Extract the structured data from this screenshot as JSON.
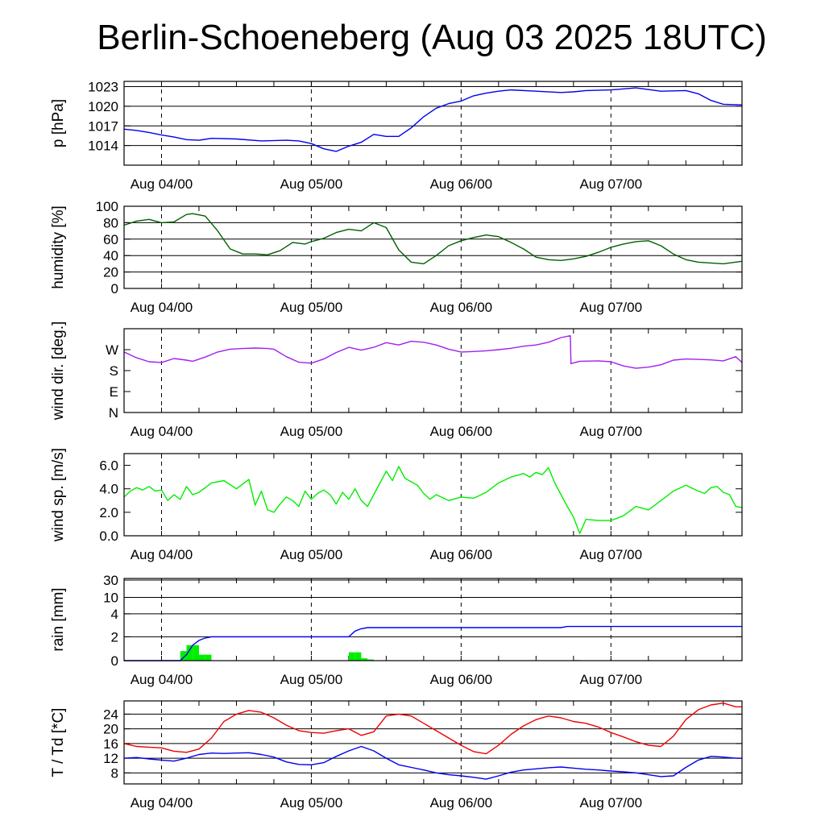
{
  "title": "Berlin-Schoeneberg (Aug 03 2025 18UTC)",
  "x_ticks": [
    "Aug 04/00",
    "Aug 05/00",
    "Aug 06/00",
    "Aug 07/00"
  ],
  "chart_data": [
    {
      "type": "line",
      "ylabel": "p [hPa]",
      "ylim": [
        1011,
        1023.8
      ],
      "yticks": [
        "1014",
        "1017",
        "1020",
        "1023"
      ],
      "grid": true,
      "series": [
        {
          "color": "#0000ee",
          "x": [
            -6,
            -4,
            -2,
            0,
            2,
            4,
            6,
            8,
            12,
            16,
            20,
            22,
            24,
            26,
            28,
            30,
            32,
            34,
            36,
            38,
            40,
            42,
            44,
            46,
            48,
            50,
            52,
            54,
            56,
            60,
            64,
            66,
            68,
            72,
            76,
            80,
            84,
            86,
            88,
            90,
            93
          ],
          "y": [
            1016.5,
            1016.3,
            1016.0,
            1015.6,
            1015.3,
            1014.9,
            1014.8,
            1015.1,
            1015.0,
            1014.7,
            1014.8,
            1014.7,
            1014.3,
            1013.5,
            1013.1,
            1013.9,
            1014.5,
            1015.7,
            1015.4,
            1015.4,
            1016.7,
            1018.4,
            1019.7,
            1020.4,
            1020.8,
            1021.6,
            1022.0,
            1022.3,
            1022.5,
            1022.3,
            1022.1,
            1022.2,
            1022.4,
            1022.5,
            1022.8,
            1022.3,
            1022.4,
            1021.9,
            1020.9,
            1020.3,
            1020.2
          ]
        }
      ]
    },
    {
      "type": "line",
      "ylabel": "humidity [%]",
      "ylim": [
        0,
        100
      ],
      "yticks": [
        "0",
        "20",
        "40",
        "60",
        "80",
        "100"
      ],
      "grid": true,
      "series": [
        {
          "color": "#006000",
          "x": [
            -6,
            -4,
            -2,
            0,
            2,
            4,
            5,
            7,
            9,
            11,
            13,
            15,
            17,
            19,
            21,
            23,
            24,
            26,
            28,
            30,
            32,
            34,
            36,
            38,
            40,
            42,
            44,
            46,
            48,
            50,
            52,
            54,
            56,
            58,
            60,
            62,
            64,
            66,
            68,
            70,
            72,
            74,
            76,
            78,
            80,
            82,
            84,
            86,
            88,
            90,
            93
          ],
          "y": [
            77,
            82,
            84,
            80,
            81,
            90,
            91,
            88,
            70,
            48,
            42,
            42,
            41,
            46,
            56,
            54,
            57,
            61,
            68,
            72,
            70,
            80,
            74,
            47,
            32,
            30,
            40,
            52,
            58,
            62,
            65,
            63,
            56,
            48,
            38,
            35,
            34,
            36,
            39,
            44,
            50,
            54,
            57,
            58,
            52,
            42,
            35,
            32,
            31,
            30,
            33
          ]
        }
      ]
    },
    {
      "type": "line",
      "ylabel": "wind dir. [deg.]",
      "ylim": [
        0,
        360
      ],
      "yticks": [
        "N",
        "E",
        "S",
        "W"
      ],
      "grid": false,
      "series": [
        {
          "color": "#a020f0",
          "x": [
            -6,
            -4,
            -2,
            0,
            2,
            4,
            5,
            7,
            9,
            11,
            13,
            15,
            17,
            18,
            20,
            22,
            24,
            26,
            28,
            30,
            32,
            34,
            36,
            38,
            40,
            42,
            44,
            46,
            48,
            50,
            52,
            54,
            56,
            58,
            60,
            62,
            64,
            65.5,
            65.6,
            67,
            70,
            72,
            74,
            76,
            78,
            80,
            82,
            84,
            86,
            88,
            90,
            92,
            93
          ],
          "y": [
            260,
            235,
            218,
            215,
            232,
            225,
            220,
            238,
            260,
            272,
            275,
            277,
            275,
            272,
            240,
            216,
            212,
            230,
            258,
            280,
            268,
            280,
            300,
            290,
            306,
            302,
            290,
            272,
            260,
            262,
            265,
            270,
            276,
            285,
            290,
            302,
            322,
            330,
            210,
            220,
            222,
            218,
            200,
            190,
            195,
            205,
            225,
            230,
            228,
            226,
            222,
            240,
            215
          ]
        }
      ]
    },
    {
      "type": "line",
      "ylabel": "wind sp. [m/s]",
      "ylim": [
        0,
        7
      ],
      "yticks": [
        "0.0",
        "2.0",
        "4.0",
        "6.0"
      ],
      "grid": false,
      "series": [
        {
          "color": "#00ee00",
          "x": [
            -6,
            -5,
            -4,
            -3,
            -2,
            -1,
            0,
            1,
            2,
            3,
            4,
            5,
            6,
            8,
            10,
            12,
            14,
            15,
            16,
            17,
            18,
            19,
            20,
            21,
            22,
            23,
            24,
            25,
            26,
            27,
            28,
            29,
            30,
            31,
            32,
            33,
            34,
            36,
            37,
            38,
            39,
            40,
            41,
            42,
            43,
            44,
            46,
            48,
            50,
            52,
            54,
            56,
            58,
            59,
            60,
            61,
            62,
            63,
            64,
            65,
            66,
            67,
            68,
            70,
            72,
            74,
            76,
            78,
            80,
            82,
            84,
            86,
            87,
            88,
            89,
            90,
            91,
            92,
            93
          ],
          "y": [
            3.3,
            3.8,
            4.1,
            3.9,
            4.2,
            3.8,
            3.9,
            3.0,
            3.5,
            3.1,
            4.2,
            3.5,
            3.7,
            4.5,
            4.7,
            4.0,
            4.8,
            2.6,
            3.8,
            2.2,
            2.0,
            2.7,
            3.3,
            3.0,
            2.5,
            3.8,
            3.1,
            3.6,
            3.9,
            3.5,
            2.7,
            3.7,
            3.1,
            4.0,
            3.0,
            2.5,
            3.5,
            5.5,
            4.7,
            5.9,
            4.9,
            4.6,
            4.3,
            3.6,
            3.1,
            3.5,
            3.0,
            3.3,
            3.2,
            3.7,
            4.5,
            5.0,
            5.3,
            5.0,
            5.4,
            5.2,
            5.8,
            4.5,
            3.5,
            2.5,
            1.6,
            0.2,
            1.4,
            1.3,
            1.3,
            1.7,
            2.5,
            2.2,
            3.0,
            3.8,
            4.3,
            3.8,
            3.6,
            4.1,
            4.2,
            3.7,
            3.5,
            2.5,
            2.4
          ]
        }
      ]
    },
    {
      "type": "bar",
      "ylabel": "rain [mm]",
      "scale": "custom",
      "ylim": [
        0,
        30
      ],
      "yticks": [
        "0",
        "2",
        "4",
        "10",
        "30"
      ],
      "grid": true,
      "bars": {
        "color": "#00ee00",
        "x": [
          4,
          5,
          6,
          7,
          8,
          31,
          32,
          33,
          34,
          67
        ],
        "values": [
          0.8,
          1.3,
          1.3,
          0.5,
          0.5,
          0.7,
          0.7,
          0.2,
          0.1,
          0.05
        ]
      },
      "series": [
        {
          "name": "",
          "color": "#0000ee",
          "x": [
            -6,
            3,
            4,
            5,
            6,
            7,
            8,
            12,
            20,
            24,
            30,
            31,
            32,
            33,
            35,
            40,
            48,
            60,
            64,
            65,
            72,
            80,
            93
          ],
          "y": [
            0,
            0,
            0.5,
            1.3,
            1.7,
            1.9,
            2.0,
            2.0,
            2.0,
            2.0,
            2.0,
            2.5,
            2.7,
            2.8,
            2.8,
            2.8,
            2.8,
            2.8,
            2.8,
            2.9,
            2.9,
            2.9,
            2.9
          ]
        }
      ]
    },
    {
      "type": "line",
      "ylabel": "T / Td [*C]",
      "ylim": [
        5,
        27.6
      ],
      "yticks": [
        "8",
        "12",
        "16",
        "20",
        "24"
      ],
      "grid": true,
      "series": [
        {
          "color": "#ee0000",
          "x": [
            -6,
            -4,
            -2,
            0,
            2,
            4,
            6,
            8,
            10,
            12,
            14,
            16,
            18,
            20,
            22,
            24,
            26,
            28,
            30,
            32,
            34,
            36,
            38,
            40,
            42,
            44,
            46,
            48,
            50,
            52,
            54,
            56,
            58,
            60,
            62,
            64,
            66,
            68,
            70,
            72,
            74,
            76,
            78,
            80,
            82,
            84,
            86,
            88,
            90,
            92,
            93
          ],
          "y": [
            16,
            15.2,
            15,
            14.8,
            13.9,
            13.6,
            14.5,
            17.5,
            22,
            24,
            25,
            24.5,
            23,
            21,
            19.5,
            19,
            18.8,
            19.5,
            20,
            18.2,
            19.2,
            23.5,
            24,
            23.5,
            21.5,
            19.5,
            17.5,
            15.5,
            13.8,
            13.2,
            15.5,
            18.5,
            20.8,
            22.5,
            23.5,
            23,
            22,
            21.5,
            20.5,
            19,
            17.8,
            16.5,
            15.5,
            15.2,
            18,
            22.5,
            25.2,
            26.5,
            27,
            26,
            26
          ]
        },
        {
          "color": "#0000ee",
          "x": [
            -6,
            -4,
            -2,
            0,
            2,
            4,
            6,
            8,
            10,
            12,
            14,
            16,
            18,
            20,
            22,
            24,
            26,
            28,
            30,
            32,
            34,
            36,
            38,
            40,
            42,
            44,
            46,
            48,
            50,
            52,
            54,
            56,
            58,
            60,
            62,
            64,
            66,
            68,
            70,
            72,
            74,
            76,
            78,
            80,
            82,
            84,
            86,
            88,
            90,
            92,
            93
          ],
          "y": [
            12,
            12.2,
            11.8,
            11.5,
            11.2,
            12,
            13,
            13.4,
            13.3,
            13.4,
            13.5,
            13,
            12.3,
            11,
            10.3,
            10.2,
            10.8,
            12.5,
            14,
            15.2,
            14,
            12,
            10.2,
            9.5,
            8.8,
            8,
            7.5,
            7.2,
            6.8,
            6.3,
            7.2,
            8.2,
            8.8,
            9.1,
            9.4,
            9.6,
            9.3,
            9.0,
            8.8,
            8.5,
            8.3,
            8,
            7.5,
            7.0,
            7.2,
            9.5,
            11.5,
            12.5,
            12.3,
            12,
            12
          ]
        }
      ]
    }
  ]
}
